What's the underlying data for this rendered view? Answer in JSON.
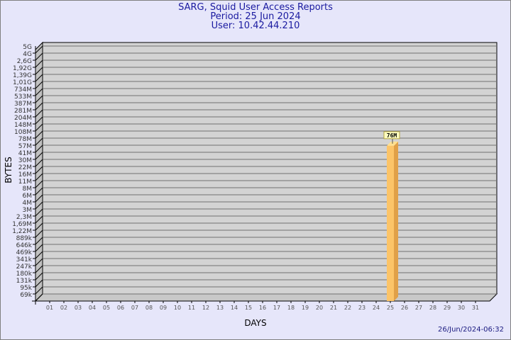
{
  "chart_data": {
    "type": "bar",
    "title": "SARG, Squid User Access Reports",
    "subtitle": [
      "Period: 25 Jun 2024",
      "User: 10.42.44.210"
    ],
    "xlabel": "DAYS",
    "ylabel": "BYTES",
    "yscale": "log",
    "ytick_labels": [
      "5G",
      "4G",
      "2,6G",
      "1,92G",
      "1,39G",
      "1,01G",
      "734M",
      "533M",
      "387M",
      "281M",
      "204M",
      "148M",
      "108M",
      "78M",
      "57M",
      "41M",
      "30M",
      "22M",
      "16M",
      "11M",
      "8M",
      "6M",
      "4M",
      "3M",
      "2,3M",
      "1,69M",
      "1,22M",
      "889k",
      "646k",
      "469k",
      "341k",
      "247k",
      "180k",
      "131k",
      "95k",
      "69k"
    ],
    "categories": [
      "01",
      "02",
      "03",
      "04",
      "05",
      "06",
      "07",
      "08",
      "09",
      "10",
      "11",
      "12",
      "13",
      "14",
      "15",
      "16",
      "17",
      "18",
      "19",
      "20",
      "21",
      "22",
      "23",
      "24",
      "25",
      "26",
      "27",
      "28",
      "29",
      "30",
      "31"
    ],
    "values": [
      0,
      0,
      0,
      0,
      0,
      0,
      0,
      0,
      0,
      0,
      0,
      0,
      0,
      0,
      0,
      0,
      0,
      0,
      0,
      0,
      0,
      0,
      0,
      0,
      76000000,
      0,
      0,
      0,
      0,
      0,
      0
    ],
    "data_labels": {
      "25": "76M"
    },
    "grid": true,
    "colors": {
      "bar_front": "#fcc468",
      "bar_side": "#e0a048",
      "bar_top": "#ffe090",
      "wall": "#d3d3d3",
      "text": "#1a1aa0"
    }
  },
  "footer": {
    "timestamp": "26/Jun/2024-06:32"
  }
}
